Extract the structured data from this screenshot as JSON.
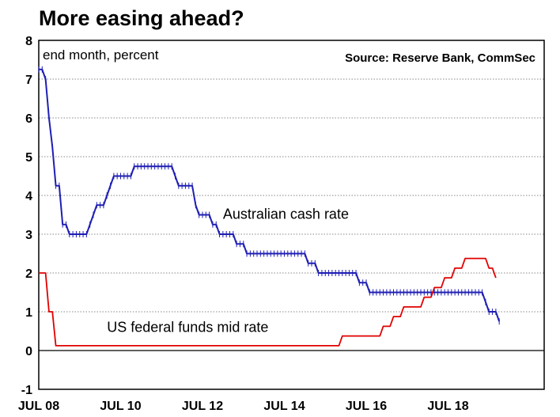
{
  "chart_data": {
    "type": "line",
    "title": "More easing ahead?",
    "subtitle": "end month, percent",
    "source": "Source: Reserve Bank, CommSec",
    "ylim": [
      -1,
      8
    ],
    "y_ticks": [
      "-1",
      "0",
      "1",
      "2",
      "3",
      "4",
      "5",
      "6",
      "7",
      "8"
    ],
    "x_range": [
      "2008-07",
      "2019-07"
    ],
    "x_ticks": [
      {
        "label": "JUL 08",
        "date": "2008-07"
      },
      {
        "label": "JUL 10",
        "date": "2010-07"
      },
      {
        "label": "JUL 12",
        "date": "2012-07"
      },
      {
        "label": "JUL 14",
        "date": "2014-07"
      },
      {
        "label": "JUL 16",
        "date": "2016-07"
      },
      {
        "label": "JUL 18",
        "date": "2018-07"
      }
    ],
    "grid": "horizontal dotted",
    "series": [
      {
        "name": "Australian cash rate",
        "color": "#1f1fb4",
        "markers": "plus",
        "points": [
          [
            "2008-07",
            7.25
          ],
          [
            "2008-08",
            7.25
          ],
          [
            "2008-09",
            7.0
          ],
          [
            "2008-10",
            6.0
          ],
          [
            "2008-11",
            5.25
          ],
          [
            "2008-12",
            4.25
          ],
          [
            "2009-01",
            4.25
          ],
          [
            "2009-02",
            3.25
          ],
          [
            "2009-03",
            3.25
          ],
          [
            "2009-04",
            3.0
          ],
          [
            "2009-05",
            3.0
          ],
          [
            "2009-06",
            3.0
          ],
          [
            "2009-07",
            3.0
          ],
          [
            "2009-08",
            3.0
          ],
          [
            "2009-09",
            3.0
          ],
          [
            "2009-10",
            3.25
          ],
          [
            "2009-11",
            3.5
          ],
          [
            "2009-12",
            3.75
          ],
          [
            "2010-01",
            3.75
          ],
          [
            "2010-02",
            3.75
          ],
          [
            "2010-03",
            4.0
          ],
          [
            "2010-04",
            4.25
          ],
          [
            "2010-05",
            4.5
          ],
          [
            "2010-06",
            4.5
          ],
          [
            "2010-07",
            4.5
          ],
          [
            "2010-08",
            4.5
          ],
          [
            "2010-09",
            4.5
          ],
          [
            "2010-10",
            4.5
          ],
          [
            "2010-11",
            4.75
          ],
          [
            "2010-12",
            4.75
          ],
          [
            "2011-01",
            4.75
          ],
          [
            "2011-02",
            4.75
          ],
          [
            "2011-03",
            4.75
          ],
          [
            "2011-04",
            4.75
          ],
          [
            "2011-05",
            4.75
          ],
          [
            "2011-06",
            4.75
          ],
          [
            "2011-07",
            4.75
          ],
          [
            "2011-08",
            4.75
          ],
          [
            "2011-09",
            4.75
          ],
          [
            "2011-10",
            4.75
          ],
          [
            "2011-11",
            4.5
          ],
          [
            "2011-12",
            4.25
          ],
          [
            "2012-01",
            4.25
          ],
          [
            "2012-02",
            4.25
          ],
          [
            "2012-03",
            4.25
          ],
          [
            "2012-04",
            4.25
          ],
          [
            "2012-05",
            3.75
          ],
          [
            "2012-06",
            3.5
          ],
          [
            "2012-07",
            3.5
          ],
          [
            "2012-08",
            3.5
          ],
          [
            "2012-09",
            3.5
          ],
          [
            "2012-10",
            3.25
          ],
          [
            "2012-11",
            3.25
          ],
          [
            "2012-12",
            3.0
          ],
          [
            "2013-01",
            3.0
          ],
          [
            "2013-02",
            3.0
          ],
          [
            "2013-03",
            3.0
          ],
          [
            "2013-04",
            3.0
          ],
          [
            "2013-05",
            2.75
          ],
          [
            "2013-06",
            2.75
          ],
          [
            "2013-07",
            2.75
          ],
          [
            "2013-08",
            2.5
          ],
          [
            "2013-09",
            2.5
          ],
          [
            "2013-10",
            2.5
          ],
          [
            "2013-11",
            2.5
          ],
          [
            "2013-12",
            2.5
          ],
          [
            "2014-01",
            2.5
          ],
          [
            "2014-02",
            2.5
          ],
          [
            "2014-03",
            2.5
          ],
          [
            "2014-04",
            2.5
          ],
          [
            "2014-05",
            2.5
          ],
          [
            "2014-06",
            2.5
          ],
          [
            "2014-07",
            2.5
          ],
          [
            "2014-08",
            2.5
          ],
          [
            "2014-09",
            2.5
          ],
          [
            "2014-10",
            2.5
          ],
          [
            "2014-11",
            2.5
          ],
          [
            "2014-12",
            2.5
          ],
          [
            "2015-01",
            2.5
          ],
          [
            "2015-02",
            2.25
          ],
          [
            "2015-03",
            2.25
          ],
          [
            "2015-04",
            2.25
          ],
          [
            "2015-05",
            2.0
          ],
          [
            "2015-06",
            2.0
          ],
          [
            "2015-07",
            2.0
          ],
          [
            "2015-08",
            2.0
          ],
          [
            "2015-09",
            2.0
          ],
          [
            "2015-10",
            2.0
          ],
          [
            "2015-11",
            2.0
          ],
          [
            "2015-12",
            2.0
          ],
          [
            "2016-01",
            2.0
          ],
          [
            "2016-02",
            2.0
          ],
          [
            "2016-03",
            2.0
          ],
          [
            "2016-04",
            2.0
          ],
          [
            "2016-05",
            1.75
          ],
          [
            "2016-06",
            1.75
          ],
          [
            "2016-07",
            1.75
          ],
          [
            "2016-08",
            1.5
          ],
          [
            "2016-09",
            1.5
          ],
          [
            "2016-10",
            1.5
          ],
          [
            "2016-11",
            1.5
          ],
          [
            "2016-12",
            1.5
          ],
          [
            "2017-01",
            1.5
          ],
          [
            "2017-02",
            1.5
          ],
          [
            "2017-03",
            1.5
          ],
          [
            "2017-04",
            1.5
          ],
          [
            "2017-05",
            1.5
          ],
          [
            "2017-06",
            1.5
          ],
          [
            "2017-07",
            1.5
          ],
          [
            "2017-08",
            1.5
          ],
          [
            "2017-09",
            1.5
          ],
          [
            "2017-10",
            1.5
          ],
          [
            "2017-11",
            1.5
          ],
          [
            "2017-12",
            1.5
          ],
          [
            "2018-01",
            1.5
          ],
          [
            "2018-02",
            1.5
          ],
          [
            "2018-03",
            1.5
          ],
          [
            "2018-04",
            1.5
          ],
          [
            "2018-05",
            1.5
          ],
          [
            "2018-06",
            1.5
          ],
          [
            "2018-07",
            1.5
          ],
          [
            "2018-08",
            1.5
          ],
          [
            "2018-09",
            1.5
          ],
          [
            "2018-10",
            1.5
          ],
          [
            "2018-11",
            1.5
          ],
          [
            "2018-12",
            1.5
          ],
          [
            "2019-01",
            1.5
          ],
          [
            "2019-02",
            1.5
          ],
          [
            "2019-03",
            1.5
          ],
          [
            "2019-04",
            1.5
          ],
          [
            "2019-05",
            1.5
          ],
          [
            "2019-06",
            1.25
          ],
          [
            "2019-07",
            1.0
          ],
          [
            "2019-08",
            1.0
          ],
          [
            "2019-09",
            1.0
          ],
          [
            "2019-10",
            0.75
          ]
        ]
      },
      {
        "name": "US federal funds mid rate",
        "color": "#e00000",
        "markers": "none",
        "points": [
          [
            "2008-07",
            2.0
          ],
          [
            "2008-09",
            2.0
          ],
          [
            "2008-10",
            1.0
          ],
          [
            "2008-11",
            1.0
          ],
          [
            "2008-12",
            0.125
          ],
          [
            "2015-11",
            0.125
          ],
          [
            "2015-12",
            0.375
          ],
          [
            "2016-11",
            0.375
          ],
          [
            "2016-12",
            0.625
          ],
          [
            "2017-02",
            0.625
          ],
          [
            "2017-03",
            0.875
          ],
          [
            "2017-05",
            0.875
          ],
          [
            "2017-06",
            1.125
          ],
          [
            "2017-11",
            1.125
          ],
          [
            "2017-12",
            1.375
          ],
          [
            "2018-02",
            1.375
          ],
          [
            "2018-03",
            1.625
          ],
          [
            "2018-05",
            1.625
          ],
          [
            "2018-06",
            1.875
          ],
          [
            "2018-08",
            1.875
          ],
          [
            "2018-09",
            2.125
          ],
          [
            "2018-11",
            2.125
          ],
          [
            "2018-12",
            2.375
          ],
          [
            "2019-06",
            2.375
          ],
          [
            "2019-07",
            2.125
          ],
          [
            "2019-08",
            2.125
          ],
          [
            "2019-09",
            1.875
          ]
        ]
      }
    ],
    "series_labels": [
      {
        "text": "Australian cash rate",
        "date": "2013-01",
        "y": 3.4
      },
      {
        "text": "US federal funds mid rate",
        "date": "2010-03",
        "y": 0.48
      }
    ]
  }
}
